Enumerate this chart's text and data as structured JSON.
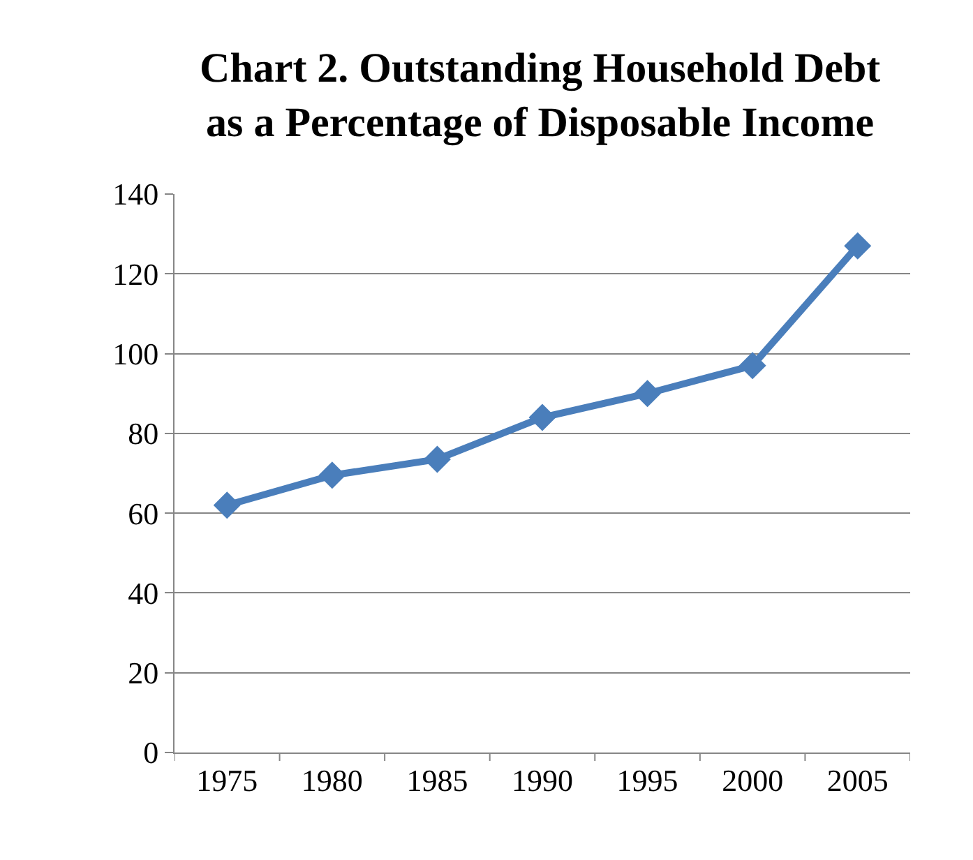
{
  "chart_data": {
    "type": "line",
    "title": "Chart 2. Outstanding Household Debt\nas a Percentage of Disposable Income",
    "categories": [
      "1975",
      "1980",
      "1985",
      "1990",
      "1995",
      "2000",
      "2005"
    ],
    "series": [
      {
        "color": "#4a7ebb",
        "values": [
          62,
          69.5,
          73.5,
          84,
          90,
          97,
          127
        ]
      }
    ],
    "ylim": [
      0,
      140
    ],
    "yticks": [
      0,
      20,
      40,
      60,
      80,
      100,
      120,
      140
    ],
    "grid": "y",
    "marker": "diamond",
    "line_style": "solid"
  }
}
